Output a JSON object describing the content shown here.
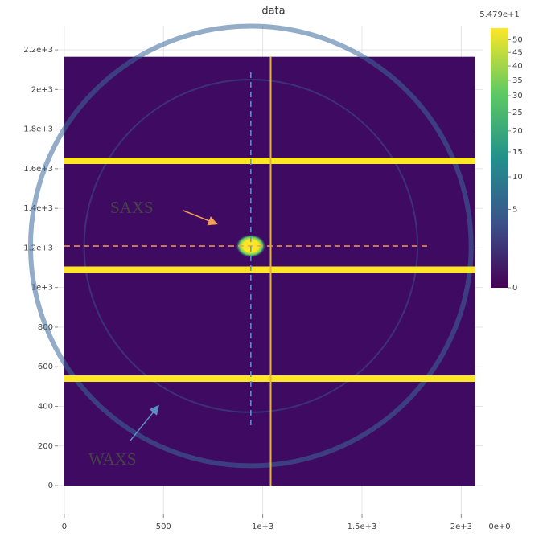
{
  "chart_data": {
    "type": "image",
    "title": "data",
    "xlim": [
      -32,
      2108
    ],
    "ylim": [
      -146,
      2322
    ],
    "xticks": [
      0,
      500,
      {
        "value": 1000,
        "label": "1e+3"
      },
      {
        "value": 1500,
        "label": "1.5e+3"
      },
      {
        "value": 2000,
        "label": "2e+3"
      }
    ],
    "yticks": [
      0,
      200,
      400,
      600,
      800,
      {
        "value": 1000,
        "label": "1e+3"
      },
      {
        "value": 1200,
        "label": "1.2e+3"
      },
      {
        "value": 1400,
        "label": "1.4e+3"
      },
      {
        "value": 1600,
        "label": "1.6e+3"
      },
      {
        "value": 1800,
        "label": "1.8e+3"
      },
      {
        "value": 2000,
        "label": "2e+3"
      },
      {
        "value": 2200,
        "label": "2.2e+3"
      }
    ],
    "grid": true,
    "image": {
      "extent": [
        0,
        2070,
        0,
        2165
      ],
      "color": "#3f0b62"
    },
    "beam_center": [
      940,
      1210
    ],
    "ring_radii": [
      840,
      1110
    ],
    "detector_gaps": {
      "horizontal": [
        1640,
        1090,
        540
      ],
      "vertical": [
        1040
      ],
      "color": "#fde725",
      "vertical_color": "#e3b33a"
    },
    "guides": [
      {
        "axis": "y",
        "value": 1210,
        "color": "#f0a050"
      },
      {
        "axis": "x",
        "value": 940,
        "color": "#3fa0d8"
      }
    ],
    "annotations": [
      {
        "text": "SAXS",
        "color": "#f0a050"
      },
      {
        "text": "WAXS",
        "color": "#5b8fc0"
      }
    ],
    "colorbar": {
      "scale": "sqrt",
      "clim": [
        {
          "value": 0,
          "label": "0e+0"
        },
        {
          "value": 54.79,
          "label": "5.479e+1"
        }
      ],
      "ticks": [
        0,
        5,
        10,
        15,
        20,
        25,
        30,
        35,
        40,
        45,
        50
      ],
      "colors": [
        "#440154",
        "#3b528b",
        "#21918c",
        "#5ec962",
        "#fde725"
      ]
    }
  }
}
